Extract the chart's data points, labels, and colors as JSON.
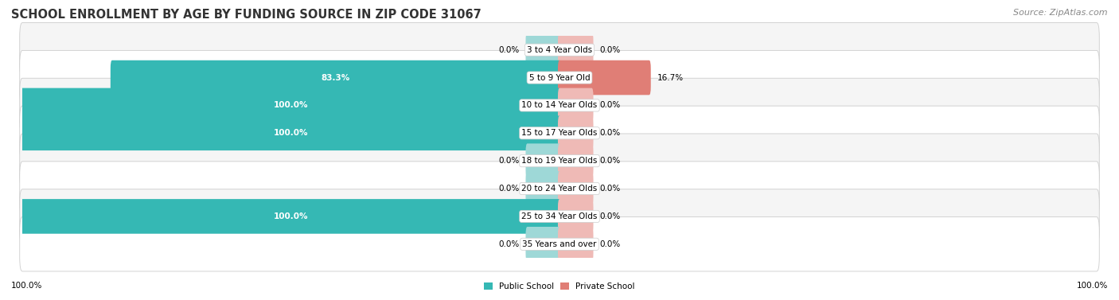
{
  "title": "SCHOOL ENROLLMENT BY AGE BY FUNDING SOURCE IN ZIP CODE 31067",
  "source": "Source: ZipAtlas.com",
  "categories": [
    "3 to 4 Year Olds",
    "5 to 9 Year Old",
    "10 to 14 Year Olds",
    "15 to 17 Year Olds",
    "18 to 19 Year Olds",
    "20 to 24 Year Olds",
    "25 to 34 Year Olds",
    "35 Years and over"
  ],
  "public_values": [
    0.0,
    83.3,
    100.0,
    100.0,
    0.0,
    0.0,
    100.0,
    0.0
  ],
  "private_values": [
    0.0,
    16.7,
    0.0,
    0.0,
    0.0,
    0.0,
    0.0,
    0.0
  ],
  "public_color": "#35b8b4",
  "private_color": "#e07e76",
  "public_color_light": "#9ed8d7",
  "private_color_light": "#efbab6",
  "background_color": "#ffffff",
  "row_bg_even": "#f5f5f5",
  "row_bg_odd": "#ffffff",
  "title_fontsize": 10.5,
  "source_fontsize": 8,
  "label_fontsize": 7.5,
  "bar_height": 0.65,
  "small_bar_width": 6.0,
  "x_min": -100,
  "x_max": 100,
  "axis_label_left": "100.0%",
  "axis_label_right": "100.0%"
}
